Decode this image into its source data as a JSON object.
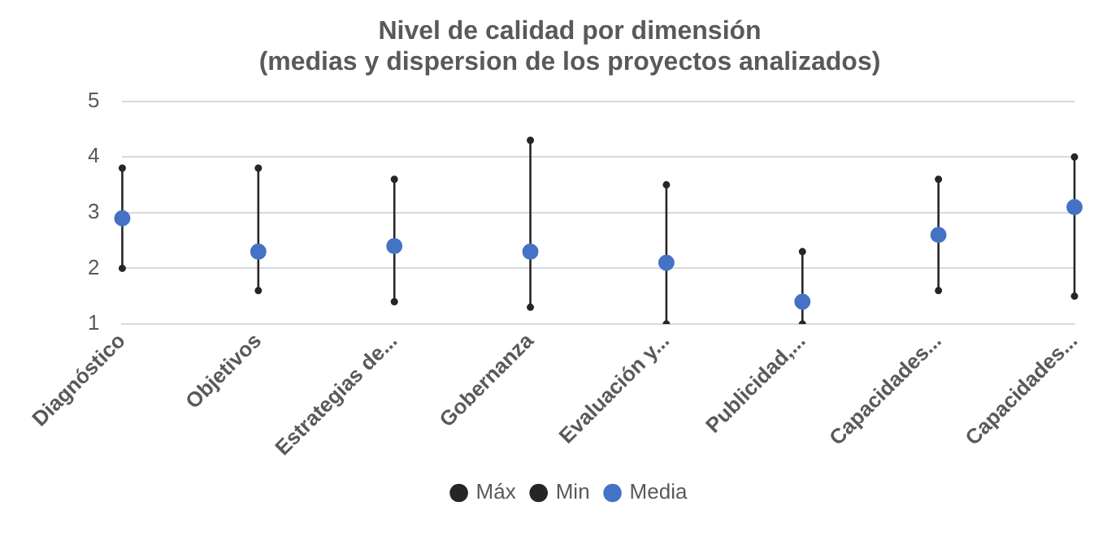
{
  "chart_data": {
    "type": "scatter",
    "title": [
      "Nivel de calidad por dimensión",
      "(medias y dispersion de los proyectos analizados)"
    ],
    "categories": [
      "Diagnóstico",
      "Objetivos",
      "Estrategias de...",
      "Gobernanza",
      "Evaluación y...",
      "Publicidad,...",
      "Capacidades...",
      "Capacidades..."
    ],
    "series": [
      {
        "name": "Máx",
        "color": "#262626",
        "values": [
          3.8,
          3.8,
          3.6,
          4.3,
          3.5,
          2.3,
          3.6,
          4.0
        ]
      },
      {
        "name": "Min",
        "color": "#262626",
        "values": [
          2.0,
          1.6,
          1.4,
          1.3,
          1.0,
          1.0,
          1.6,
          1.5
        ]
      },
      {
        "name": "Media",
        "color": "#4472c4",
        "values": [
          2.9,
          2.3,
          2.4,
          2.3,
          2.1,
          1.4,
          2.6,
          3.1
        ]
      }
    ],
    "ylim": [
      1,
      5
    ],
    "yticks": [
      1,
      2,
      3,
      4,
      5
    ],
    "grid": "y",
    "legend": "bottom",
    "marker": "circle"
  }
}
